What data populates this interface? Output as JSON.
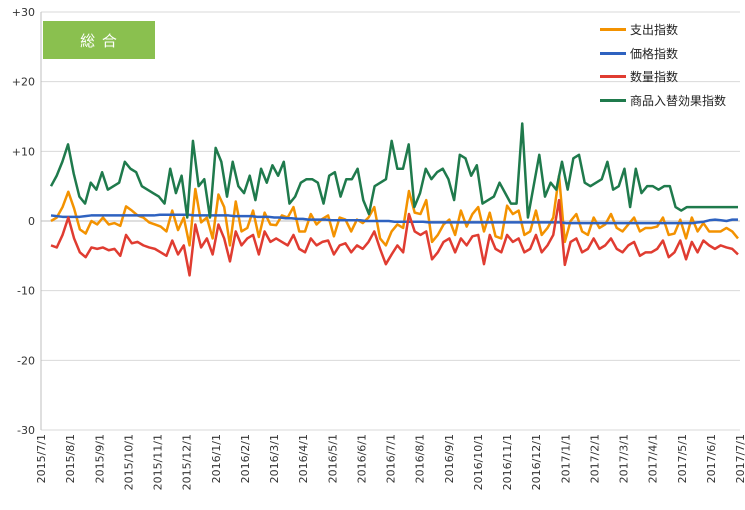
{
  "title": "総 合",
  "chart_data": {
    "type": "line",
    "title": "総 合",
    "xlabel": "",
    "ylabel": "",
    "ylim": [
      -30,
      30
    ],
    "yticks": [
      30,
      20,
      10,
      0,
      -10,
      -20,
      -30
    ],
    "ytick_labels": [
      "+30",
      "+20",
      "+10",
      "0",
      "-10",
      "-20",
      "-30"
    ],
    "xticks": [
      "2015/7/1",
      "2015/8/1",
      "2015/9/1",
      "2015/10/1",
      "2015/11/1",
      "2015/12/1",
      "2016/1/1",
      "2016/2/1",
      "2016/3/1",
      "2016/4/1",
      "2016/5/1",
      "2016/6/1",
      "2016/7/1",
      "2016/8/1",
      "2016/9/1",
      "2016/10/1",
      "2016/11/1",
      "2016/12/1",
      "2017/1/1",
      "2017/2/1",
      "2017/3/1",
      "2017/4/1",
      "2017/5/1",
      "2017/6/1",
      "2017/7/1"
    ],
    "x_start": "2015/7/1",
    "x_end": "2017/7/1",
    "grid": true,
    "legend_position": "top-right",
    "series": [
      {
        "name": "支出指数",
        "color": "#f39200",
        "values": [
          0.0,
          0.5,
          2.0,
          4.2,
          1.8,
          -1.2,
          -1.8,
          0.0,
          -0.5,
          0.5,
          -0.5,
          -0.3,
          -0.7,
          2.1,
          1.5,
          0.8,
          0.5,
          -0.2,
          -0.5,
          -0.8,
          -1.5,
          1.5,
          -1.3,
          0.5,
          -3.5,
          4.6,
          -0.2,
          0.5,
          -2.5,
          3.8,
          2.0,
          -3.5,
          2.8,
          -1.5,
          -1.0,
          1.5,
          -2.3,
          1.2,
          -0.5,
          -0.6,
          0.8,
          0.5,
          2.0,
          -1.5,
          -1.5,
          1.0,
          -0.5,
          0.3,
          0.8,
          -2.2,
          0.5,
          0.2,
          -1.5,
          0.2,
          -0.3,
          0.5,
          2.0,
          -2.5,
          -3.5,
          -1.5,
          -0.5,
          -1.0,
          4.3,
          1.2,
          1.0,
          3.0,
          -3.0,
          -2.0,
          -0.5,
          0.2,
          -2.0,
          1.5,
          -0.8,
          1.0,
          2.0,
          -1.5,
          1.2,
          -2.2,
          -2.5,
          2.2,
          1.0,
          1.5,
          -2.0,
          -1.5,
          1.5,
          -2.0,
          -1.0,
          0.5,
          6.5,
          -3.0,
          0.0,
          1.0,
          -1.5,
          -2.0,
          0.5,
          -1.0,
          -0.5,
          1.0,
          -1.0,
          -1.5,
          -0.5,
          0.5,
          -1.5,
          -1.0,
          -1.0,
          -0.8,
          0.5,
          -2.0,
          -1.8,
          0.2,
          -2.5,
          0.5,
          -1.5,
          -0.3,
          -1.5,
          -1.5,
          -1.5,
          -1.0,
          -1.5,
          -2.5
        ]
      },
      {
        "name": "価格指数",
        "color": "#2e62c0",
        "values": [
          0.8,
          0.7,
          0.6,
          0.6,
          0.6,
          0.6,
          0.7,
          0.8,
          0.8,
          0.8,
          0.8,
          0.8,
          0.8,
          0.8,
          0.8,
          0.8,
          0.8,
          0.8,
          0.8,
          0.9,
          0.9,
          0.9,
          0.9,
          0.9,
          0.9,
          0.8,
          0.8,
          0.8,
          0.8,
          0.8,
          0.8,
          0.8,
          0.7,
          0.7,
          0.7,
          0.7,
          0.6,
          0.6,
          0.6,
          0.5,
          0.5,
          0.4,
          0.4,
          0.3,
          0.3,
          0.2,
          0.2,
          0.2,
          0.2,
          0.1,
          0.1,
          0.1,
          0.1,
          0.1,
          0.1,
          0.0,
          0.0,
          0.0,
          0.0,
          0.0,
          -0.1,
          -0.1,
          -0.1,
          -0.1,
          -0.1,
          -0.1,
          -0.2,
          -0.2,
          -0.2,
          -0.2,
          -0.2,
          -0.2,
          -0.2,
          -0.2,
          -0.2,
          -0.2,
          -0.2,
          -0.2,
          -0.2,
          -0.2,
          -0.2,
          -0.2,
          -0.2,
          -0.2,
          -0.2,
          -0.2,
          -0.2,
          -0.2,
          -0.2,
          -0.2,
          -0.3,
          -0.3,
          -0.3,
          -0.3,
          -0.3,
          -0.3,
          -0.3,
          -0.3,
          -0.3,
          -0.3,
          -0.3,
          -0.3,
          -0.3,
          -0.3,
          -0.3,
          -0.3,
          -0.3,
          -0.3,
          -0.3,
          -0.3,
          -0.3,
          -0.3,
          -0.3,
          -0.2,
          -0.1,
          0.1,
          0.2,
          0.1,
          0.0,
          0.2,
          0.2
        ]
      },
      {
        "name": "数量指数",
        "color": "#e03c31",
        "values": [
          -3.5,
          -3.8,
          -2.0,
          0.5,
          -2.5,
          -4.5,
          -5.2,
          -3.8,
          -4.0,
          -3.8,
          -4.2,
          -4.0,
          -5.0,
          -2.0,
          -3.2,
          -3.0,
          -3.5,
          -3.8,
          -4.0,
          -4.5,
          -5.0,
          -2.8,
          -4.8,
          -3.5,
          -7.8,
          -0.5,
          -3.8,
          -2.5,
          -4.8,
          -0.5,
          -2.5,
          -5.8,
          -1.5,
          -3.5,
          -2.5,
          -2.0,
          -4.8,
          -1.5,
          -3.0,
          -2.5,
          -3.0,
          -3.5,
          -2.0,
          -4.0,
          -4.5,
          -2.5,
          -3.5,
          -3.0,
          -2.8,
          -4.8,
          -3.5,
          -3.2,
          -4.5,
          -3.5,
          -4.0,
          -3.0,
          -1.5,
          -4.0,
          -6.2,
          -4.8,
          -3.5,
          -4.5,
          1.0,
          -1.5,
          -2.0,
          -1.5,
          -5.5,
          -4.5,
          -3.0,
          -2.5,
          -4.5,
          -2.5,
          -3.5,
          -2.2,
          -2.0,
          -6.2,
          -2.0,
          -4.0,
          -4.5,
          -2.0,
          -3.0,
          -2.5,
          -4.5,
          -4.0,
          -2.0,
          -4.5,
          -3.5,
          -2.0,
          3.0,
          -6.3,
          -3.0,
          -2.5,
          -4.5,
          -4.0,
          -2.5,
          -4.0,
          -3.5,
          -2.5,
          -4.0,
          -4.5,
          -3.5,
          -3.0,
          -5.0,
          -4.5,
          -4.5,
          -4.0,
          -2.8,
          -5.2,
          -4.5,
          -2.8,
          -5.5,
          -3.0,
          -4.5,
          -2.8,
          -3.5,
          -4.0,
          -3.5,
          -3.8,
          -4.0,
          -4.8
        ]
      },
      {
        "name": "商品入替効果指数",
        "color": "#1f7a4c",
        "values": [
          5.0,
          6.5,
          8.5,
          11.0,
          6.8,
          3.5,
          2.5,
          5.5,
          4.5,
          7.0,
          4.5,
          5.0,
          5.5,
          8.5,
          7.5,
          7.0,
          5.0,
          4.5,
          4.0,
          3.5,
          2.5,
          7.5,
          4.0,
          6.5,
          0.5,
          11.5,
          5.0,
          6.0,
          0.5,
          10.5,
          8.5,
          3.5,
          8.5,
          5.0,
          4.0,
          6.5,
          3.0,
          7.5,
          5.5,
          8.0,
          6.5,
          8.5,
          2.5,
          3.5,
          5.5,
          6.0,
          6.0,
          5.5,
          2.5,
          6.5,
          7.0,
          3.5,
          6.0,
          6.0,
          7.5,
          3.0,
          1.0,
          5.0,
          5.5,
          6.0,
          11.5,
          7.5,
          7.5,
          11.0,
          2.0,
          4.0,
          7.5,
          6.0,
          7.0,
          7.5,
          6.0,
          3.0,
          9.5,
          9.0,
          6.5,
          8.0,
          2.5,
          3.0,
          3.5,
          5.5,
          4.0,
          2.5,
          2.5,
          14.0,
          0.5,
          5.0,
          9.5,
          3.5,
          5.5,
          4.5,
          8.5,
          4.5,
          9.0,
          9.5,
          5.5,
          5.0,
          5.5,
          6.0,
          8.5,
          4.5,
          5.0,
          7.5,
          2.0,
          7.5,
          4.0,
          5.0,
          5.0,
          4.5,
          5.0,
          5.0,
          2.0,
          1.5,
          2.0,
          2.0,
          2.0,
          2.0,
          2.0,
          2.0,
          2.0,
          2.0,
          2.0,
          2.0
        ]
      }
    ]
  }
}
